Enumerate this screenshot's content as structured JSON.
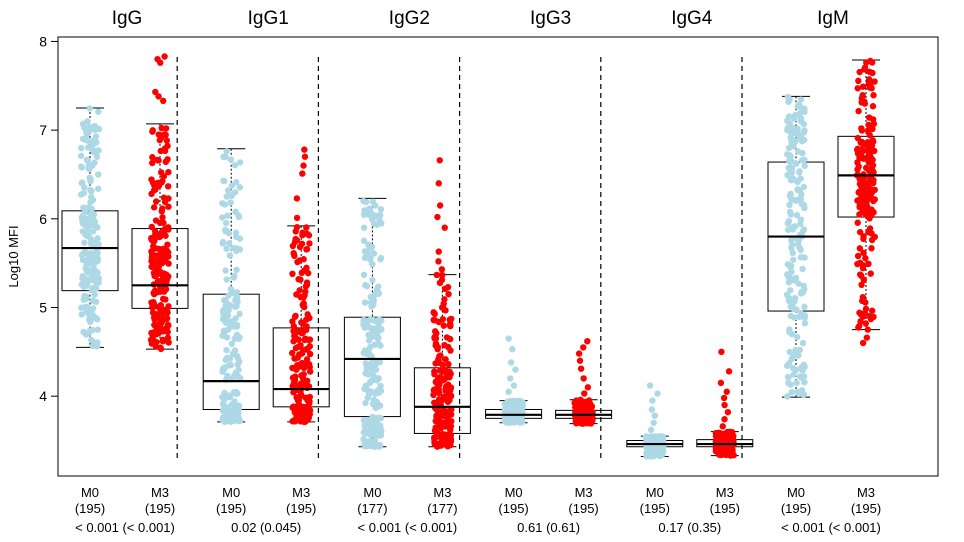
{
  "chart_data": {
    "type": "box",
    "ylabel": "Log10 MFI",
    "ylim": [
      3.1,
      8.05
    ],
    "yticks": [
      "4",
      "5",
      "6",
      "7",
      "8"
    ],
    "series": [
      {
        "name": "M0",
        "color": "#add8e6"
      },
      {
        "name": "M3",
        "color": "#ff0000"
      }
    ],
    "groups": [
      {
        "title": "IgG",
        "pvalue": "< 0.001 (< 0.001)",
        "boxes": [
          {
            "label": "M0",
            "n": "(195)",
            "series": "M0",
            "min": 4.55,
            "q1": 5.19,
            "median": 5.67,
            "q3": 6.09,
            "max": 7.25,
            "outliers": []
          },
          {
            "label": "M3",
            "n": "(195)",
            "series": "M3",
            "min": 4.53,
            "q1": 4.99,
            "median": 5.25,
            "q3": 5.89,
            "max": 7.07,
            "outliers": [
              7.33,
              7.38,
              7.43,
              7.76,
              7.8,
              7.83
            ]
          }
        ]
      },
      {
        "title": "IgG1",
        "pvalue": "0.02 (0.045)",
        "boxes": [
          {
            "label": "M0",
            "n": "(195)",
            "series": "M0",
            "min": 3.71,
            "q1": 3.85,
            "median": 4.17,
            "q3": 5.15,
            "max": 6.79,
            "outliers": []
          },
          {
            "label": "M3",
            "n": "(195)",
            "series": "M3",
            "min": 3.71,
            "q1": 3.88,
            "median": 4.08,
            "q3": 4.77,
            "max": 5.92,
            "outliers": [
              6.01,
              6.23,
              6.51,
              6.6,
              6.7,
              6.78
            ]
          }
        ]
      },
      {
        "title": "IgG2",
        "pvalue": "< 0.001 (< 0.001)",
        "boxes": [
          {
            "label": "M0",
            "n": "(177)",
            "series": "M0",
            "min": 3.43,
            "q1": 3.77,
            "median": 4.42,
            "q3": 4.89,
            "max": 6.23,
            "outliers": []
          },
          {
            "label": "M3",
            "n": "(177)",
            "series": "M3",
            "min": 3.43,
            "q1": 3.58,
            "median": 3.88,
            "q3": 4.32,
            "max": 5.37,
            "outliers": [
              5.43,
              5.52,
              5.63,
              5.9,
              6.02,
              6.15,
              6.4,
              6.66
            ]
          }
        ]
      },
      {
        "title": "IgG3",
        "pvalue": "0.61 (0.61)",
        "boxes": [
          {
            "label": "M0",
            "n": "(195)",
            "series": "M0",
            "min": 3.7,
            "q1": 3.75,
            "median": 3.79,
            "q3": 3.85,
            "max": 3.95,
            "outliers": [
              4.05,
              4.12,
              4.2,
              4.3,
              4.38,
              4.53,
              4.65
            ]
          },
          {
            "label": "M3",
            "n": "(195)",
            "series": "M3",
            "min": 3.69,
            "q1": 3.75,
            "median": 3.79,
            "q3": 3.84,
            "max": 3.96,
            "outliers": [
              4.03,
              4.1,
              4.2,
              4.31,
              4.4,
              4.48,
              4.55,
              4.62
            ]
          }
        ]
      },
      {
        "title": "IgG4",
        "pvalue": "0.17 (0.35)",
        "boxes": [
          {
            "label": "M0",
            "n": "(195)",
            "series": "M0",
            "min": 3.32,
            "q1": 3.43,
            "median": 3.46,
            "q3": 3.5,
            "max": 3.55,
            "outliers": [
              3.62,
              3.7,
              3.78,
              3.85,
              3.95,
              4.03,
              4.12
            ]
          },
          {
            "label": "M3",
            "n": "(195)",
            "series": "M3",
            "min": 3.33,
            "q1": 3.43,
            "median": 3.46,
            "q3": 3.51,
            "max": 3.6,
            "outliers": [
              3.66,
              3.74,
              3.82,
              3.9,
              3.98,
              4.05,
              4.15,
              4.28,
              4.5
            ]
          }
        ]
      },
      {
        "title": "IgM",
        "pvalue": "< 0.001 (< 0.001)",
        "boxes": [
          {
            "label": "M0",
            "n": "(195)",
            "series": "M0",
            "min": 3.99,
            "q1": 4.96,
            "median": 5.8,
            "q3": 6.64,
            "max": 7.38,
            "outliers": []
          },
          {
            "label": "M3",
            "n": "(195)",
            "series": "M3",
            "min": 4.75,
            "q1": 6.02,
            "median": 6.49,
            "q3": 6.93,
            "max": 7.79,
            "outliers": [
              4.6,
              4.66
            ]
          }
        ]
      }
    ]
  }
}
